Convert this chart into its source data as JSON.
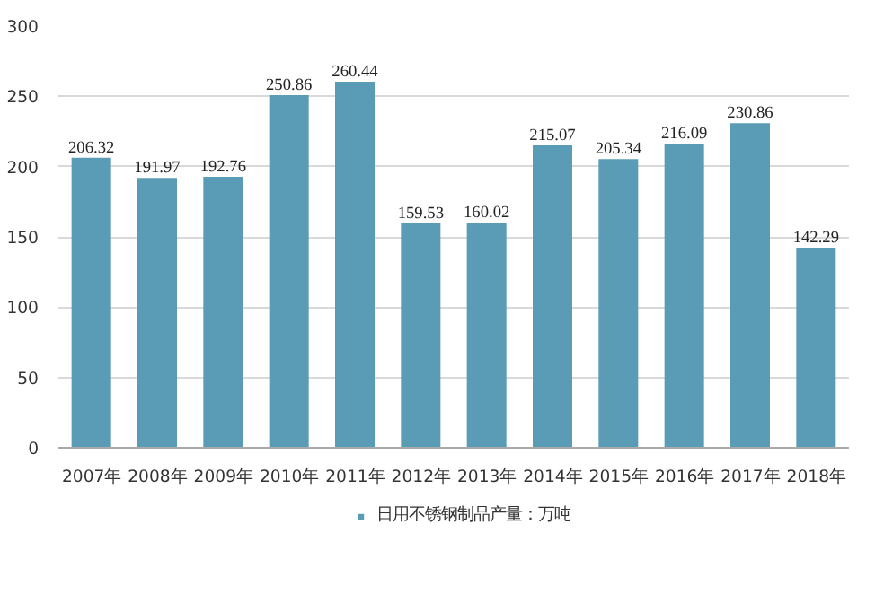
{
  "chart_data": {
    "type": "bar",
    "categories": [
      "2007年",
      "2008年",
      "2009年",
      "2010年",
      "2011年",
      "2012年",
      "2013年",
      "2014年",
      "2015年",
      "2016年",
      "2017年",
      "2018年"
    ],
    "series": [
      {
        "name": "日用不锈钢制品产量：万吨",
        "color": "#5a9bb6",
        "values": [
          206.32,
          191.97,
          192.76,
          250.86,
          260.44,
          159.53,
          160.02,
          215.07,
          205.34,
          216.09,
          230.86,
          142.29
        ]
      }
    ],
    "ylim": [
      0,
      300
    ],
    "yticks": [
      0,
      50,
      100,
      150,
      200,
      250,
      300
    ],
    "grid": "y",
    "legend": "bottom",
    "data_labels": true
  }
}
